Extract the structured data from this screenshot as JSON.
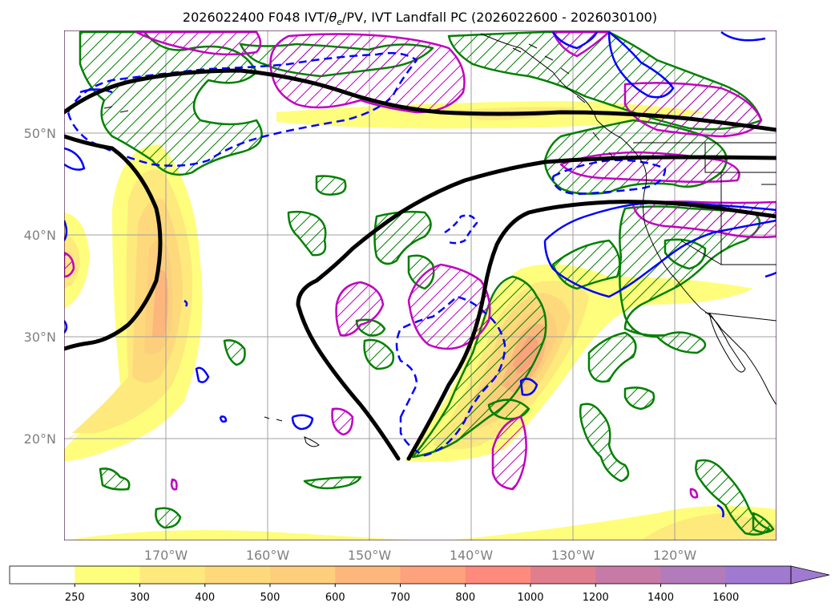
{
  "title": "2026022400 F048 IVT/θe/PV, IVT Landfall PC (2026022600 - 2026030100)",
  "title_parts": {
    "prefix": "2026022400 F048 IVT/",
    "theta": "θ",
    "theta_sub": "e",
    "suffix": "/PV, IVT Landfall PC (2026022600 - 2026030100)"
  },
  "map": {
    "projection": "PlateCarree",
    "lon_range": [
      -180,
      -110
    ],
    "lat_range": [
      10,
      60
    ],
    "grid_lons": [
      -180,
      -170,
      -160,
      -150,
      -140,
      -130,
      -120,
      -110
    ],
    "grid_lats": [
      20,
      30,
      40,
      50
    ],
    "lat_labels": [
      "20°N",
      "30°N",
      "40°N",
      "50°N"
    ],
    "lon_labels": [
      "170°W",
      "160°W",
      "150°W",
      "140°W",
      "130°W",
      "120°W"
    ]
  },
  "colorbar": {
    "levels": [
      "250",
      "300",
      "400",
      "500",
      "600",
      "700",
      "800",
      "1000",
      "1200",
      "1400",
      "1600"
    ],
    "colors": [
      "#ffffff",
      "#fefe7c",
      "#fde97c",
      "#fdd97c",
      "#fdcf7c",
      "#fdb77c",
      "#fda27c",
      "#fd8a7c",
      "#e17e8e",
      "#c87aa6",
      "#b27bbb",
      "#a07ad0"
    ],
    "extend": "max"
  },
  "layers": {
    "ivt_fill": "IVT (kg m-1 s-1)",
    "pv_contour": "PV (magenta)",
    "theta_e_contour": "θe (blue)",
    "landfall_pc": "IVT Landfall PC (green hatched)",
    "key_contour": "black"
  },
  "colors": {
    "pv": "#c000c0",
    "theta_e": "#0000ff",
    "landfall": "#008000",
    "key": "#000000",
    "grid": "#a0a0a0",
    "coast": "#000000"
  }
}
